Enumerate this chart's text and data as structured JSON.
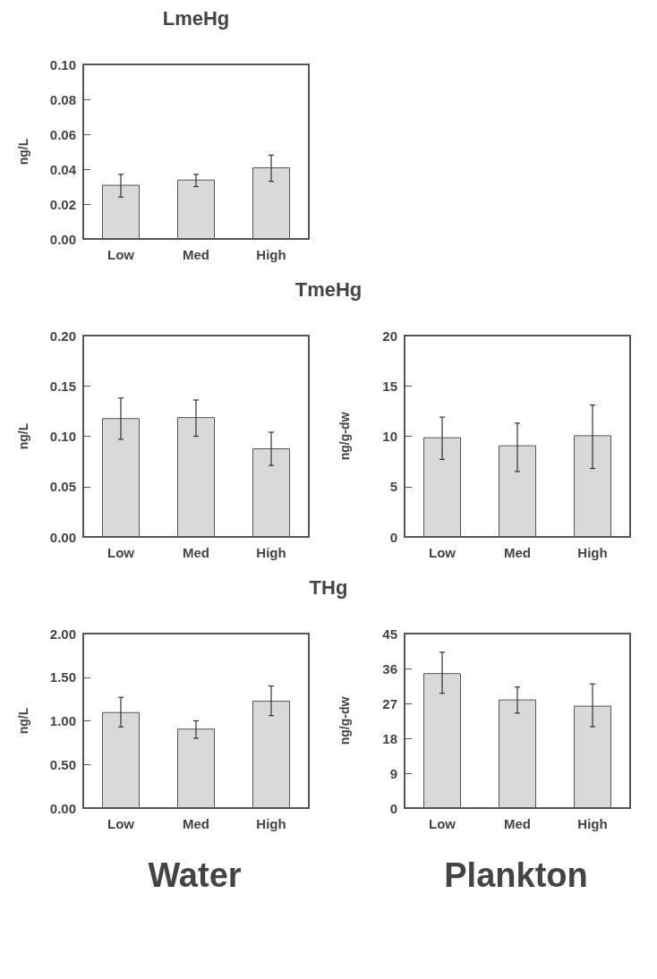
{
  "chart_data": [
    {
      "type": "bar",
      "title": "LmeHg",
      "ylabel": "ng/L",
      "categories": [
        "Low",
        "Med",
        "High"
      ],
      "values": [
        0.031,
        0.034,
        0.041
      ],
      "errors": [
        [
          0.024,
          0.037
        ],
        [
          0.03,
          0.037
        ],
        [
          0.033,
          0.048
        ]
      ],
      "color": "#d9d9d9",
      "ylim": [
        0,
        0.1
      ],
      "yticks": [
        {
          "value": 0,
          "label": "0.00"
        },
        0.02,
        0.04,
        0.06,
        0.08,
        {
          "value": 0.1,
          "label": "0.10"
        }
      ]
    },
    {
      "type": "bar",
      "title": "TmeHg",
      "ylabel": "ng/L",
      "categories": [
        "Low",
        "Med",
        "High"
      ],
      "values": [
        0.118,
        0.119,
        0.088
      ],
      "errors": [
        [
          0.097,
          0.138
        ],
        [
          0.1,
          0.136
        ],
        [
          0.071,
          0.104
        ]
      ],
      "color": "#d9d9d9",
      "ylim": [
        0,
        0.2
      ],
      "yticks": [
        {
          "value": 0,
          "label": "0.00"
        },
        0.05,
        {
          "value": 0.1,
          "label": "0.10"
        },
        0.15,
        {
          "value": 0.2,
          "label": "0.20"
        }
      ]
    },
    {
      "type": "bar",
      "ylabel": "ng/g-dw",
      "categories": [
        "Low",
        "Med",
        "High"
      ],
      "values": [
        9.9,
        9.1,
        10.1
      ],
      "errors": [
        [
          7.7,
          11.9
        ],
        [
          6.5,
          11.3
        ],
        [
          6.8,
          13.1
        ]
      ],
      "color": "#d9d9d9",
      "ylim": [
        0,
        20
      ],
      "yticks": [
        0,
        5,
        10,
        15,
        20
      ]
    },
    {
      "type": "bar",
      "title": "THg",
      "ylabel": "ng/L",
      "categories": [
        "Low",
        "Med",
        "High"
      ],
      "values": [
        1.1,
        0.91,
        1.23
      ],
      "errors": [
        [
          0.93,
          1.27
        ],
        [
          0.8,
          1.0
        ],
        [
          1.06,
          1.4
        ]
      ],
      "color": "#d9d9d9",
      "ylim": [
        0,
        2
      ],
      "yticks": [
        {
          "value": 0,
          "label": "0.00"
        },
        {
          "value": 0.5,
          "label": "0.50"
        },
        {
          "value": 1,
          "label": "1.00"
        },
        {
          "value": 1.5,
          "label": "1.50"
        },
        {
          "value": 2,
          "label": "2.00"
        }
      ],
      "annotations": [
        "Water"
      ]
    },
    {
      "type": "bar",
      "ylabel": "ng/g-dw",
      "categories": [
        "Low",
        "Med",
        "High"
      ],
      "values": [
        34.8,
        28.0,
        26.4
      ],
      "errors": [
        [
          29.6,
          40.2
        ],
        [
          24.5,
          31.2
        ],
        [
          21.0,
          32.0
        ]
      ],
      "color": "#d9d9d9",
      "ylim": [
        0,
        45
      ],
      "yticks": [
        0,
        9,
        18,
        27,
        36,
        45
      ],
      "annotations": [
        "Plankton"
      ]
    }
  ]
}
